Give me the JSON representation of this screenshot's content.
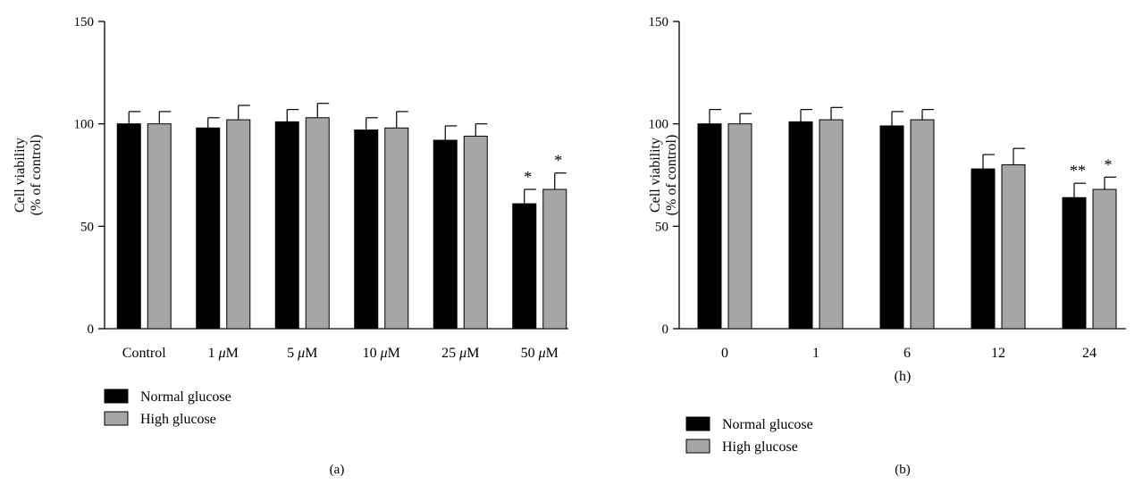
{
  "chart_data": [
    {
      "type": "bar",
      "panel_label": "(a)",
      "title": "",
      "xlabel": "",
      "ylabel": [
        "Cell viability",
        "(% of control)"
      ],
      "ylim": [
        0,
        150
      ],
      "yticks": [
        "0",
        "50",
        "100",
        "150"
      ],
      "categories": [
        "Control",
        "1 μM",
        "5 μM",
        "10 μM",
        "25 μM",
        "50 μM"
      ],
      "series": [
        {
          "name": "Normal glucose",
          "color": "#000000",
          "values": [
            100,
            98,
            101,
            97,
            92,
            61
          ],
          "errors": [
            6,
            5,
            6,
            6,
            7,
            7
          ]
        },
        {
          "name": "High glucose",
          "color": "#a6a6a6",
          "values": [
            100,
            102,
            103,
            98,
            94,
            68
          ],
          "errors": [
            6,
            7,
            7,
            8,
            6,
            8
          ]
        }
      ],
      "annotations": [
        {
          "category": "50 μM",
          "series": "Normal glucose",
          "text": "*"
        },
        {
          "category": "50 μM",
          "series": "High glucose",
          "text": "*"
        }
      ],
      "legend_position": "bottom-left",
      "grid": false
    },
    {
      "type": "bar",
      "panel_label": "(b)",
      "title": "",
      "xlabel": "(h)",
      "ylabel": [
        "Cell viability",
        "(% of control)"
      ],
      "ylim": [
        0,
        150
      ],
      "yticks": [
        "0",
        "50",
        "100",
        "150"
      ],
      "categories": [
        "0",
        "1",
        "6",
        "12",
        "24"
      ],
      "series": [
        {
          "name": "Normal glucose",
          "color": "#000000",
          "values": [
            100,
            101,
            99,
            78,
            64
          ],
          "errors": [
            7,
            6,
            7,
            7,
            7
          ]
        },
        {
          "name": "High glucose",
          "color": "#a6a6a6",
          "values": [
            100,
            102,
            102,
            80,
            68
          ],
          "errors": [
            5,
            6,
            5,
            8,
            6
          ]
        }
      ],
      "annotations": [
        {
          "category": "24",
          "series": "Normal glucose",
          "text": "**"
        },
        {
          "category": "24",
          "series": "High glucose",
          "text": "*"
        }
      ],
      "legend_position": "bottom-left",
      "grid": false
    }
  ]
}
